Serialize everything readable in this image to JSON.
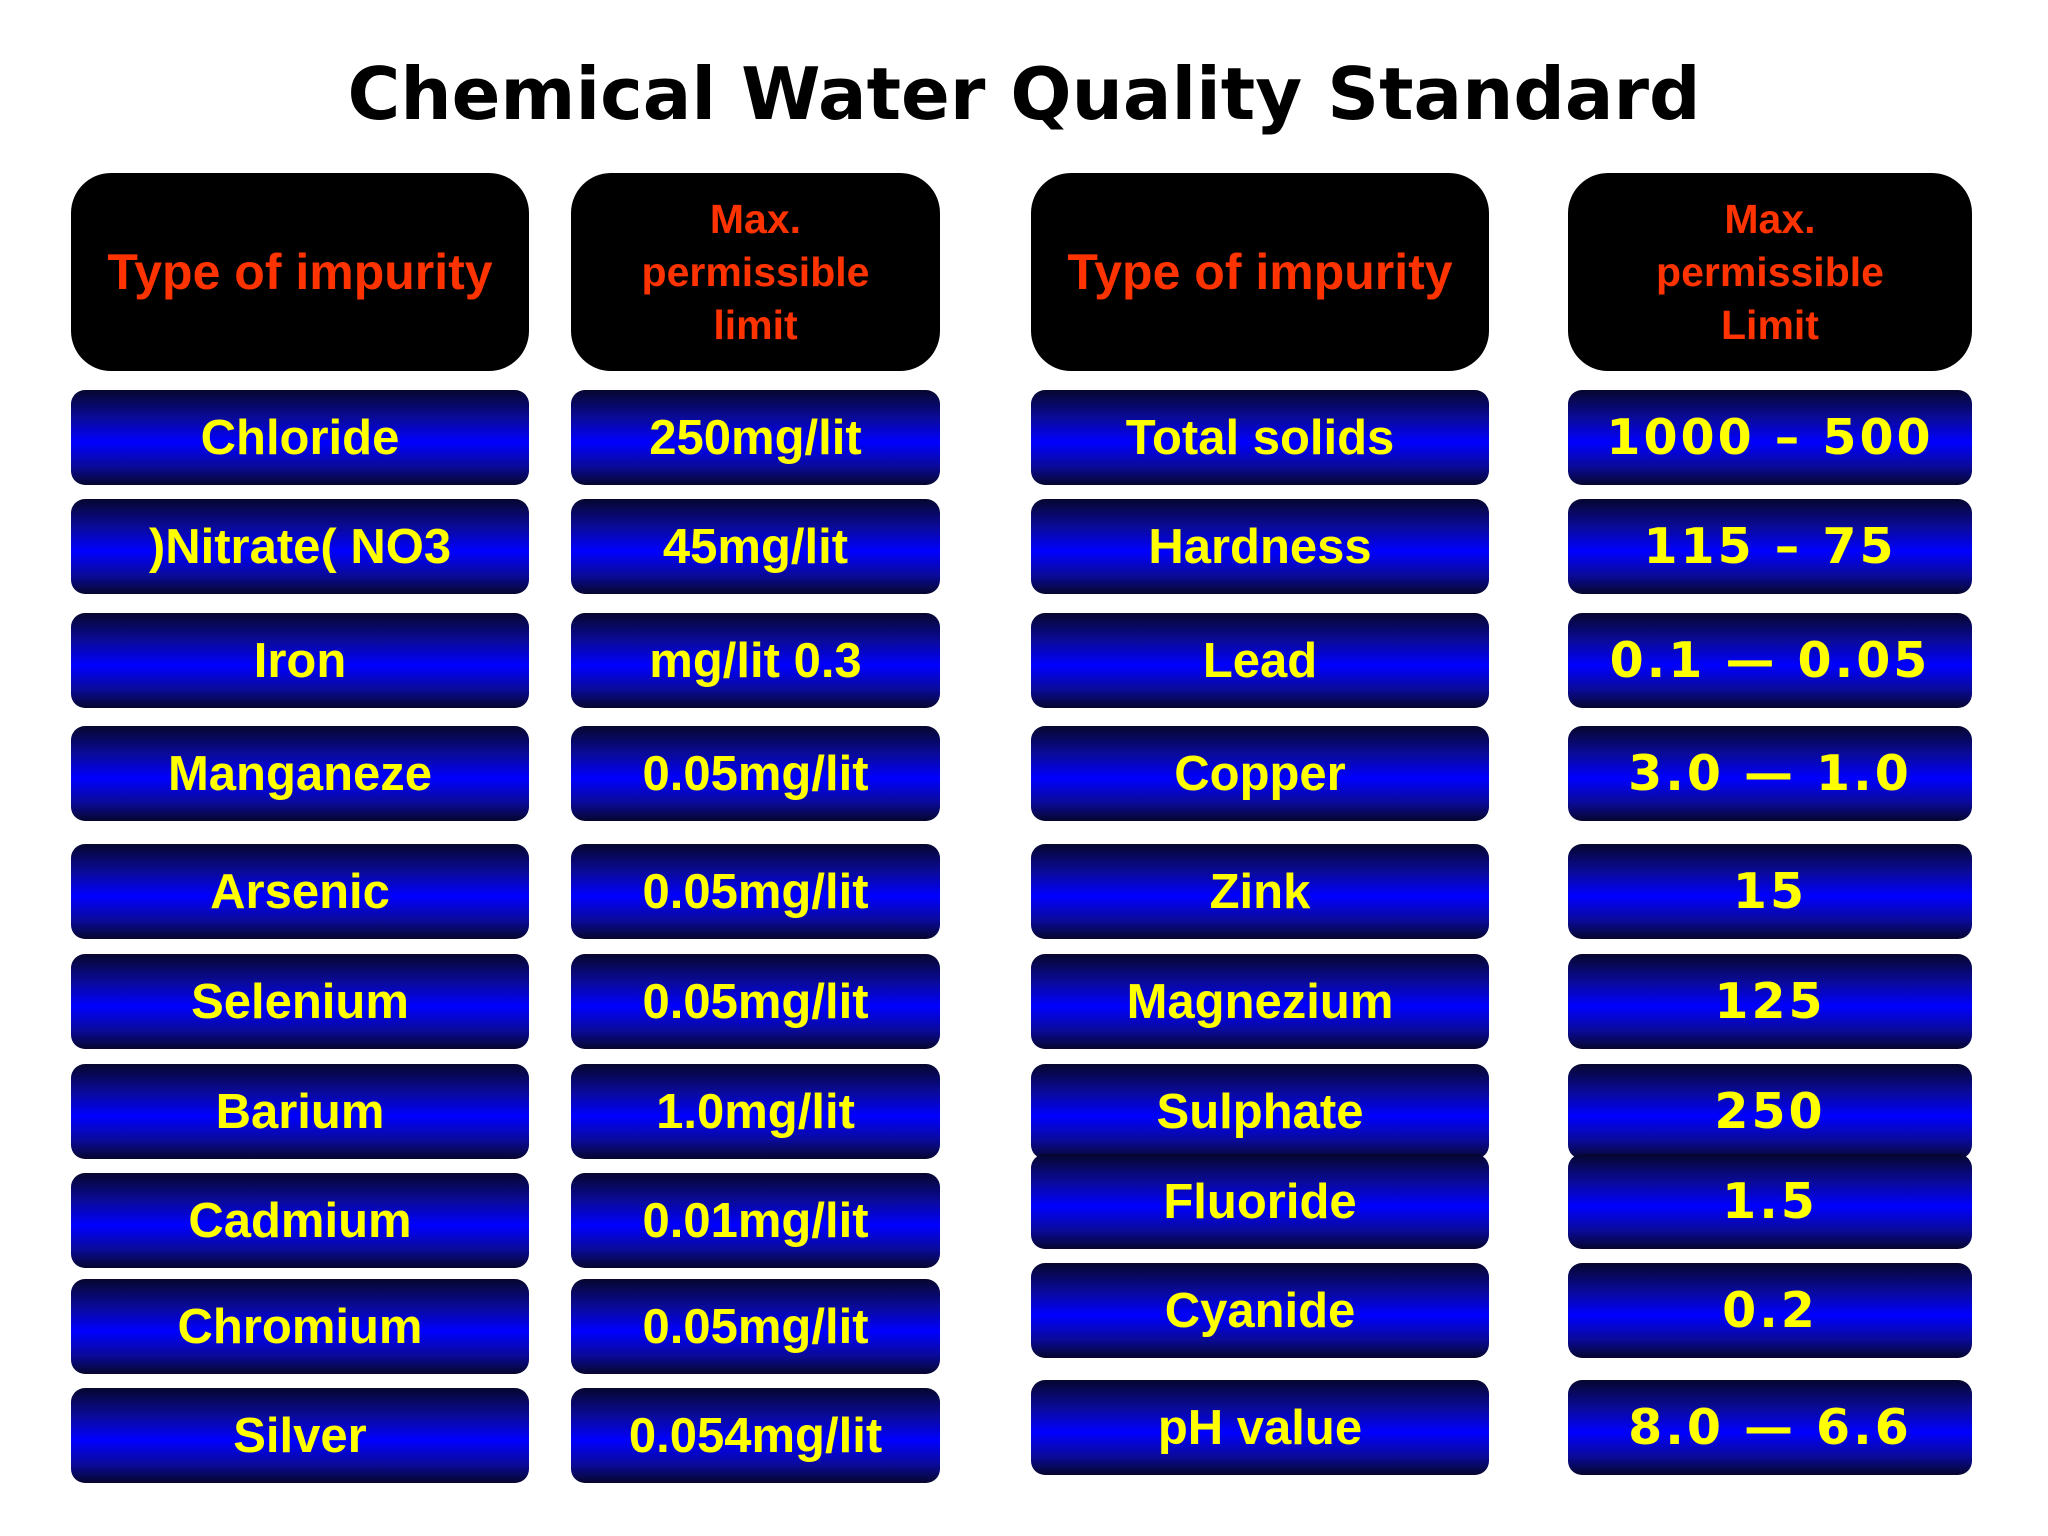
{
  "title": "Chemical Water Quality Standard",
  "headers": {
    "left_type": "Type of impurity",
    "left_limit": [
      "Max.",
      "permissible",
      "limit"
    ],
    "right_type": "Type of impurity",
    "right_limit": [
      "Max.",
      "permissible",
      "Limit"
    ]
  },
  "left_rows": [
    {
      "impurity": "Chloride",
      "limit": "250mg/lit"
    },
    {
      "impurity": ")Nitrate( NO3",
      "limit": "45mg/lit"
    },
    {
      "impurity": "Iron",
      "limit": "mg/lit 0.3"
    },
    {
      "impurity": "Manganeze",
      "limit": "0.05mg/lit"
    },
    {
      "impurity": "Arsenic",
      "limit": "0.05mg/lit"
    },
    {
      "impurity": "Selenium",
      "limit": "0.05mg/lit"
    },
    {
      "impurity": "Barium",
      "limit": "1.0mg/lit"
    },
    {
      "impurity": "Cadmium",
      "limit": "0.01mg/lit"
    },
    {
      "impurity": "Chromium",
      "limit": "0.05mg/lit"
    },
    {
      "impurity": "Silver",
      "limit": "0.054mg/lit"
    }
  ],
  "right_rows": [
    {
      "impurity": "Total solids",
      "limit": "1000 – 500"
    },
    {
      "impurity": "Hardness",
      "limit": "115 – 75"
    },
    {
      "impurity": "Lead",
      "limit": "0.1 — 0.05"
    },
    {
      "impurity": "Copper",
      "limit": "3.0 — 1.0"
    },
    {
      "impurity": "Zink",
      "limit": "15"
    },
    {
      "impurity": "Magnezium",
      "limit": "125"
    },
    {
      "impurity": "Sulphate",
      "limit": "250"
    },
    {
      "impurity": "Fluoride",
      "limit": "1.5"
    },
    {
      "impurity": "Cyanide",
      "limit": "0.2"
    },
    {
      "impurity": "pH value",
      "limit": "8.0 — 6.6"
    }
  ],
  "colors": {
    "header_bg": "#000000",
    "header_text": "#ff3300",
    "cell_text": "#ffff00",
    "cell_bg": "#0000ff"
  }
}
